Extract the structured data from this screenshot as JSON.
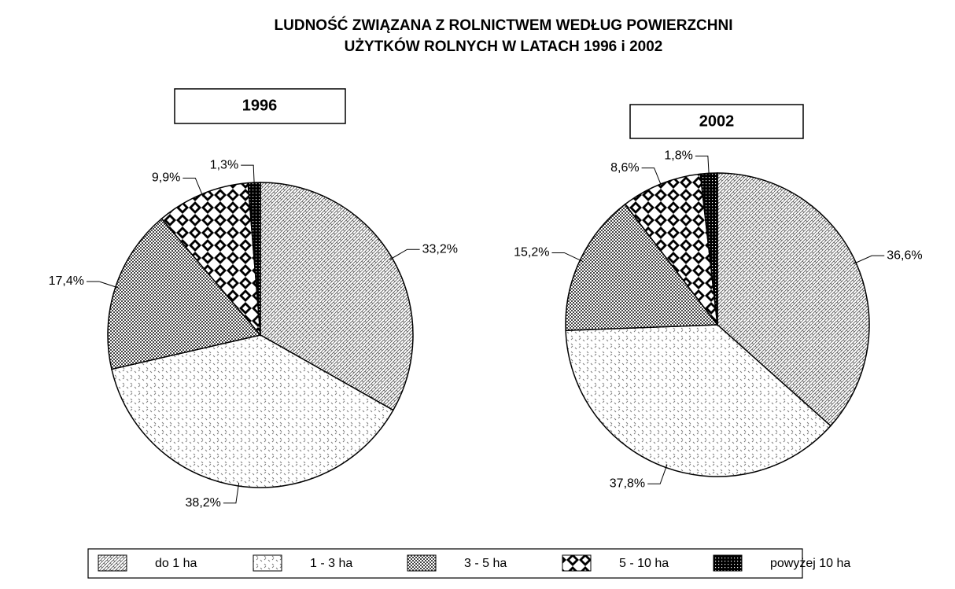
{
  "title": [
    "LUDNOŚĆ ZWIĄZANA Z ROLNICTWEM WEDŁUG POWIERZCHNI",
    "UŻYTKÓW ROLNYCH W LATACH 1996 i 2002"
  ],
  "legend": [
    "do 1 ha",
    "1 - 3 ha",
    "3 - 5 ha",
    "5 - 10 ha",
    "powyżej 10 ha"
  ],
  "chart_data": [
    {
      "type": "pie",
      "title": "1996",
      "categories": [
        "do 1 ha",
        "1 - 3 ha",
        "3 - 5 ha",
        "5 - 10 ha",
        "powyżej 10 ha"
      ],
      "values": [
        33.2,
        38.2,
        17.4,
        9.9,
        1.3
      ],
      "value_labels": [
        "33,2%",
        "38,2%",
        "17,4%",
        "9,9%",
        "1,3%"
      ]
    },
    {
      "type": "pie",
      "title": "2002",
      "categories": [
        "do 1 ha",
        "1 - 3 ha",
        "3 - 5 ha",
        "5 - 10 ha",
        "powyżej 10 ha"
      ],
      "values": [
        36.6,
        37.8,
        15.2,
        8.6,
        1.8
      ],
      "value_labels": [
        "36,6%",
        "37,8%",
        "15,2%",
        "8,6%",
        "1,8%"
      ]
    }
  ]
}
